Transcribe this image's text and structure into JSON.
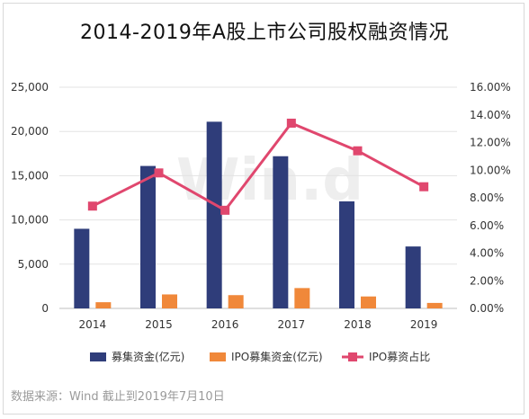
{
  "chart_data": {
    "type": "bar",
    "title": "2014-2019年A股上市公司股权融资情况",
    "categories": [
      "2014",
      "2015",
      "2016",
      "2017",
      "2018",
      "2019"
    ],
    "series": [
      {
        "name": "募集资金(亿元)",
        "type": "bar",
        "axis": "left",
        "color": "#2f3d7a",
        "values": [
          9000,
          16100,
          21100,
          17200,
          12100,
          7000
        ]
      },
      {
        "name": "IPO募集资金(亿元)",
        "type": "bar",
        "axis": "left",
        "color": "#f0883a",
        "values": [
          700,
          1580,
          1500,
          2300,
          1350,
          620
        ]
      },
      {
        "name": "IPO募资占比",
        "type": "line",
        "axis": "right",
        "color": "#e0476e",
        "values": [
          0.074,
          0.098,
          0.071,
          0.134,
          0.114,
          0.088
        ]
      }
    ],
    "y_left": {
      "min": 0,
      "max": 25000,
      "step": 5000,
      "ticks": [
        "0",
        "5,000",
        "10,000",
        "15,000",
        "20,000",
        "25,000"
      ]
    },
    "y_right": {
      "min": 0,
      "max": 0.16,
      "step": 0.02,
      "ticks": [
        "0.00%",
        "2.00%",
        "4.00%",
        "6.00%",
        "8.00%",
        "10.00%",
        "12.00%",
        "14.00%",
        "16.00%"
      ]
    },
    "grid": true,
    "legend_position": "bottom",
    "watermark": "Win.d"
  },
  "source_note": "数据来源：Wind    截止到2019年7月10日"
}
